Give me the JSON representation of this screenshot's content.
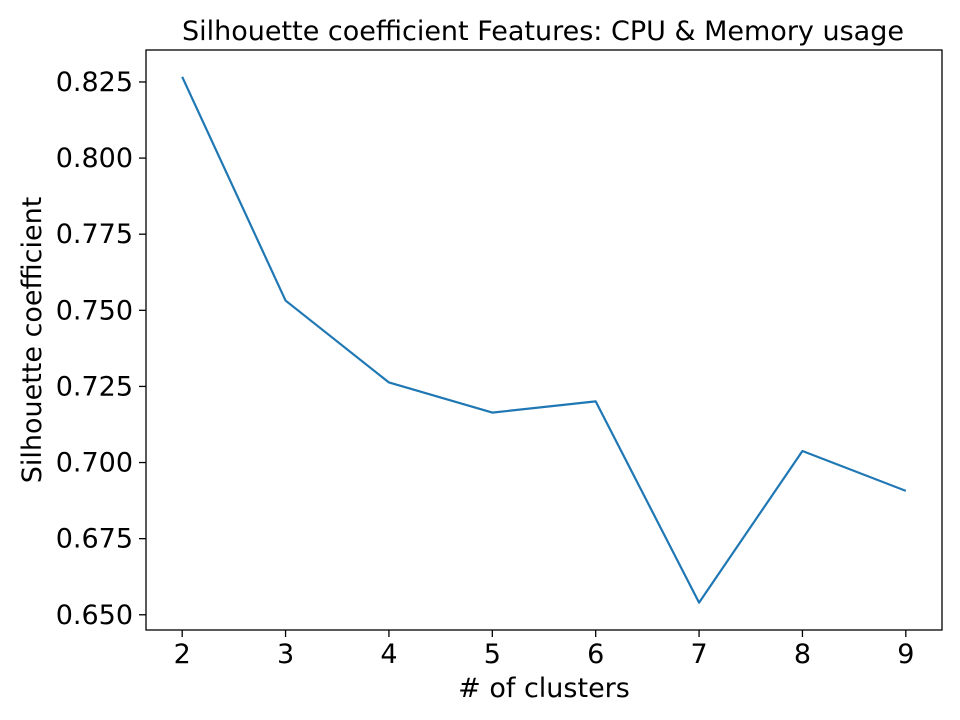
{
  "chart_data": {
    "type": "line",
    "title": "Silhouette coefficient Features: CPU & Memory usage",
    "xlabel": "# of clusters",
    "ylabel": "Silhouette coefficient",
    "x": [
      2,
      3,
      4,
      5,
      6,
      7,
      8,
      9
    ],
    "series": [
      {
        "values": [
          0.8267,
          0.7532,
          0.7263,
          0.7164,
          0.7201,
          0.654,
          0.7038,
          0.6907
        ],
        "color": "#1f77b4"
      }
    ],
    "xlim": [
      1.65,
      9.35
    ],
    "ylim": [
      0.645,
      0.8355
    ],
    "x_ticks": [
      2,
      3,
      4,
      5,
      6,
      7,
      8,
      9
    ],
    "y_ticks": [
      0.65,
      0.675,
      0.7,
      0.725,
      0.75,
      0.775,
      0.8,
      0.825
    ],
    "grid": false,
    "legend": "none"
  }
}
